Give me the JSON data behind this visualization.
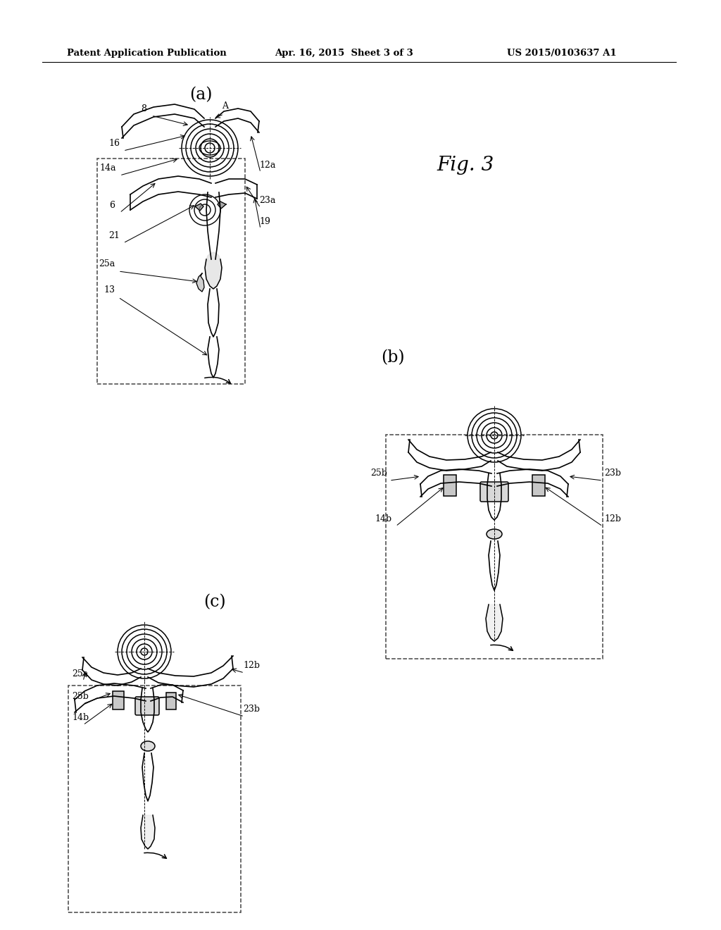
{
  "background_color": "#ffffff",
  "header_left": "Patent Application Publication",
  "header_center": "Apr. 16, 2015  Sheet 3 of 3",
  "header_right": "US 2015/0103637 A1",
  "fig_label": "Fig. 3",
  "panel_a_label": "(a)",
  "panel_b_label": "(b)",
  "panel_c_label": "(c)",
  "text_color": "#000000",
  "line_color": "#000000",
  "dashed_color": "#444444"
}
